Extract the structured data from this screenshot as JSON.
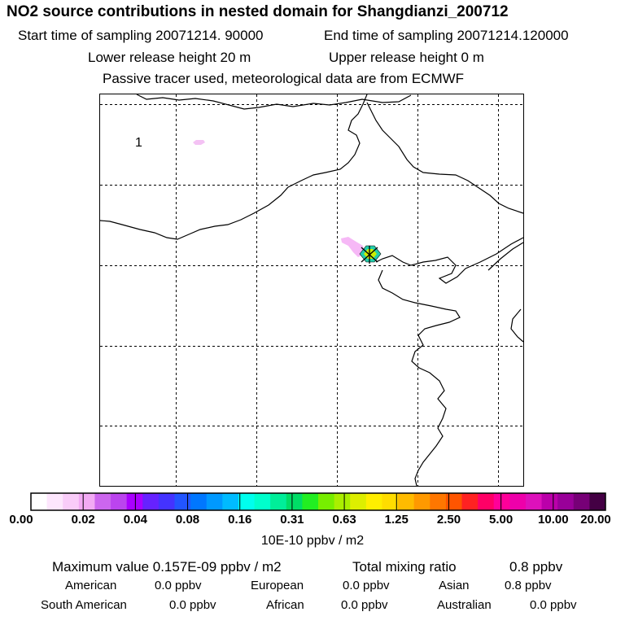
{
  "header": {
    "title": "NO2 source contributions in nested domain for Shangdianzi_200712",
    "start_time": "Start time of sampling 20071214. 90000",
    "end_time": "End time of sampling 20071214.120000",
    "lower_height": "Lower release height   20 m",
    "upper_height": "Upper release height    0 m",
    "tracer_note": "Passive tracer used, meteorological data are from ECMWF"
  },
  "map": {
    "region_label": "1",
    "station_marker": "station-cross-marker"
  },
  "colorbar": {
    "colors": [
      "#ffffff",
      "#fde6fd",
      "#f9ccf9",
      "#f2aaf4",
      "#cc66ee",
      "#bb44ee",
      "#aa00ff",
      "#6622ff",
      "#4433ff",
      "#2255ff",
      "#0077ff",
      "#0099ff",
      "#00bbff",
      "#00ffee",
      "#00ffcc",
      "#00ee99",
      "#00dd66",
      "#22ee22",
      "#77ee00",
      "#aaee00",
      "#ddee00",
      "#ffee00",
      "#ffdd00",
      "#ffbb00",
      "#ff9900",
      "#ff7700",
      "#ff5500",
      "#ff2222",
      "#ff0066",
      "#ff0099",
      "#ee00aa",
      "#dd11bb",
      "#bb00aa",
      "#990099",
      "#770077",
      "#440044"
    ],
    "ticks": [
      "0.00",
      "0.02",
      "0.04",
      "0.08",
      "0.16",
      "0.31",
      "0.63",
      "1.25",
      "2.50",
      "5.00",
      "10.00",
      "20.00"
    ],
    "unit": "10E-10 ppbv / m2"
  },
  "summary": {
    "max_value": "Maximum value  0.157E-09 ppbv / m2",
    "total_mixing": "Total mixing ratio",
    "total_value": "0.8 ppbv",
    "regions": [
      {
        "name": "American",
        "value": "0.0 ppbv"
      },
      {
        "name": "European",
        "value": "0.0 ppbv"
      },
      {
        "name": "Asian",
        "value": "0.8 ppbv"
      },
      {
        "name": "South American",
        "value": "0.0 ppbv"
      },
      {
        "name": "African",
        "value": "0.0 ppbv"
      },
      {
        "name": "Australian",
        "value": "0.0 ppbv"
      }
    ]
  }
}
